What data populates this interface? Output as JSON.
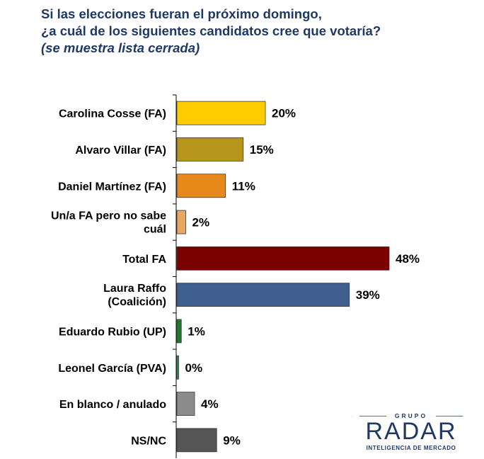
{
  "title": {
    "line1": "Si las elecciones fueran el próximo domingo,",
    "line2": "¿a cuál de los siguientes candidatos cree que votaría?",
    "subtitle": "(se muestra lista cerrada)"
  },
  "logo": {
    "top": "GRUPO",
    "name": "RADAR",
    "tagline": "INTELIGENCIA DE MERCADO"
  },
  "chart_data": {
    "type": "bar",
    "orientation": "horizontal",
    "categories": [
      "Carolina Cosse (FA)",
      "Alvaro Villar (FA)",
      "Daniel Martínez (FA)",
      "Un/a FA pero no sabe cuál",
      "Total FA",
      "Laura Raffo (Coalición)",
      "Eduardo Rubio (UP)",
      "Leonel García (PVA)",
      "En blanco / anulado",
      "NS/NC"
    ],
    "values": [
      20,
      15,
      11,
      2,
      48,
      39,
      1,
      0,
      4,
      9
    ],
    "value_labels": [
      "20%",
      "15%",
      "11%",
      "2%",
      "48%",
      "39%",
      "1%",
      "0%",
      "4%",
      "9%"
    ],
    "colors": [
      "#ffcc00",
      "#b8961e",
      "#e8891c",
      "#e8a860",
      "#7b0000",
      "#3f5f8f",
      "#1e7a2a",
      "#2e8f5f",
      "#8c8c8c",
      "#555555"
    ],
    "xlim": [
      0,
      48
    ],
    "unit": "%"
  }
}
